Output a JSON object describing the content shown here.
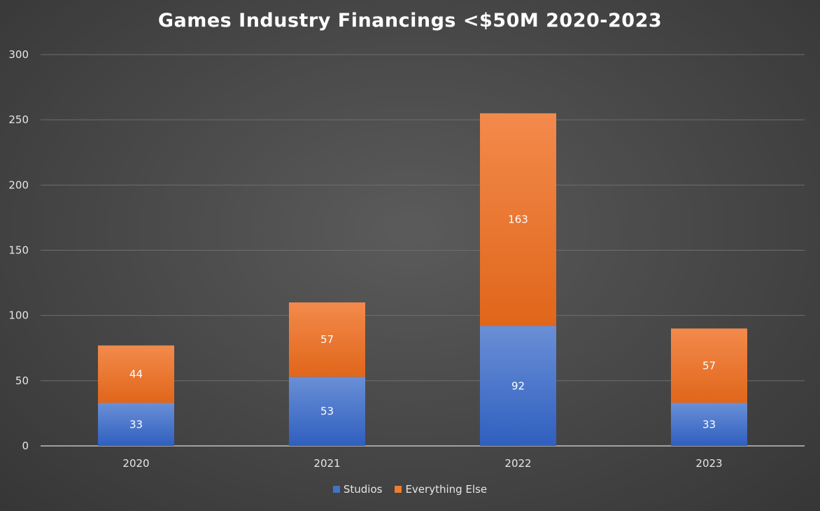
{
  "chart_data": {
    "type": "bar",
    "stacked": true,
    "title": "Games Industry Financings <$50M 2020-2023",
    "xlabel": "",
    "ylabel": "",
    "categories": [
      "2020",
      "2021",
      "2022",
      "2023"
    ],
    "series": [
      {
        "name": "Studios",
        "values": [
          33,
          53,
          92,
          33
        ],
        "color": "#4472C4"
      },
      {
        "name": "Everything Else",
        "values": [
          44,
          57,
          163,
          57
        ],
        "color": "#ED7D31"
      }
    ],
    "ylim": [
      0,
      300
    ],
    "yticks": [
      "0",
      "50",
      "100",
      "150",
      "200",
      "250",
      "300"
    ],
    "grid": true,
    "legend_position": "bottom",
    "data_labels": true,
    "background": "#4a4a4a"
  }
}
